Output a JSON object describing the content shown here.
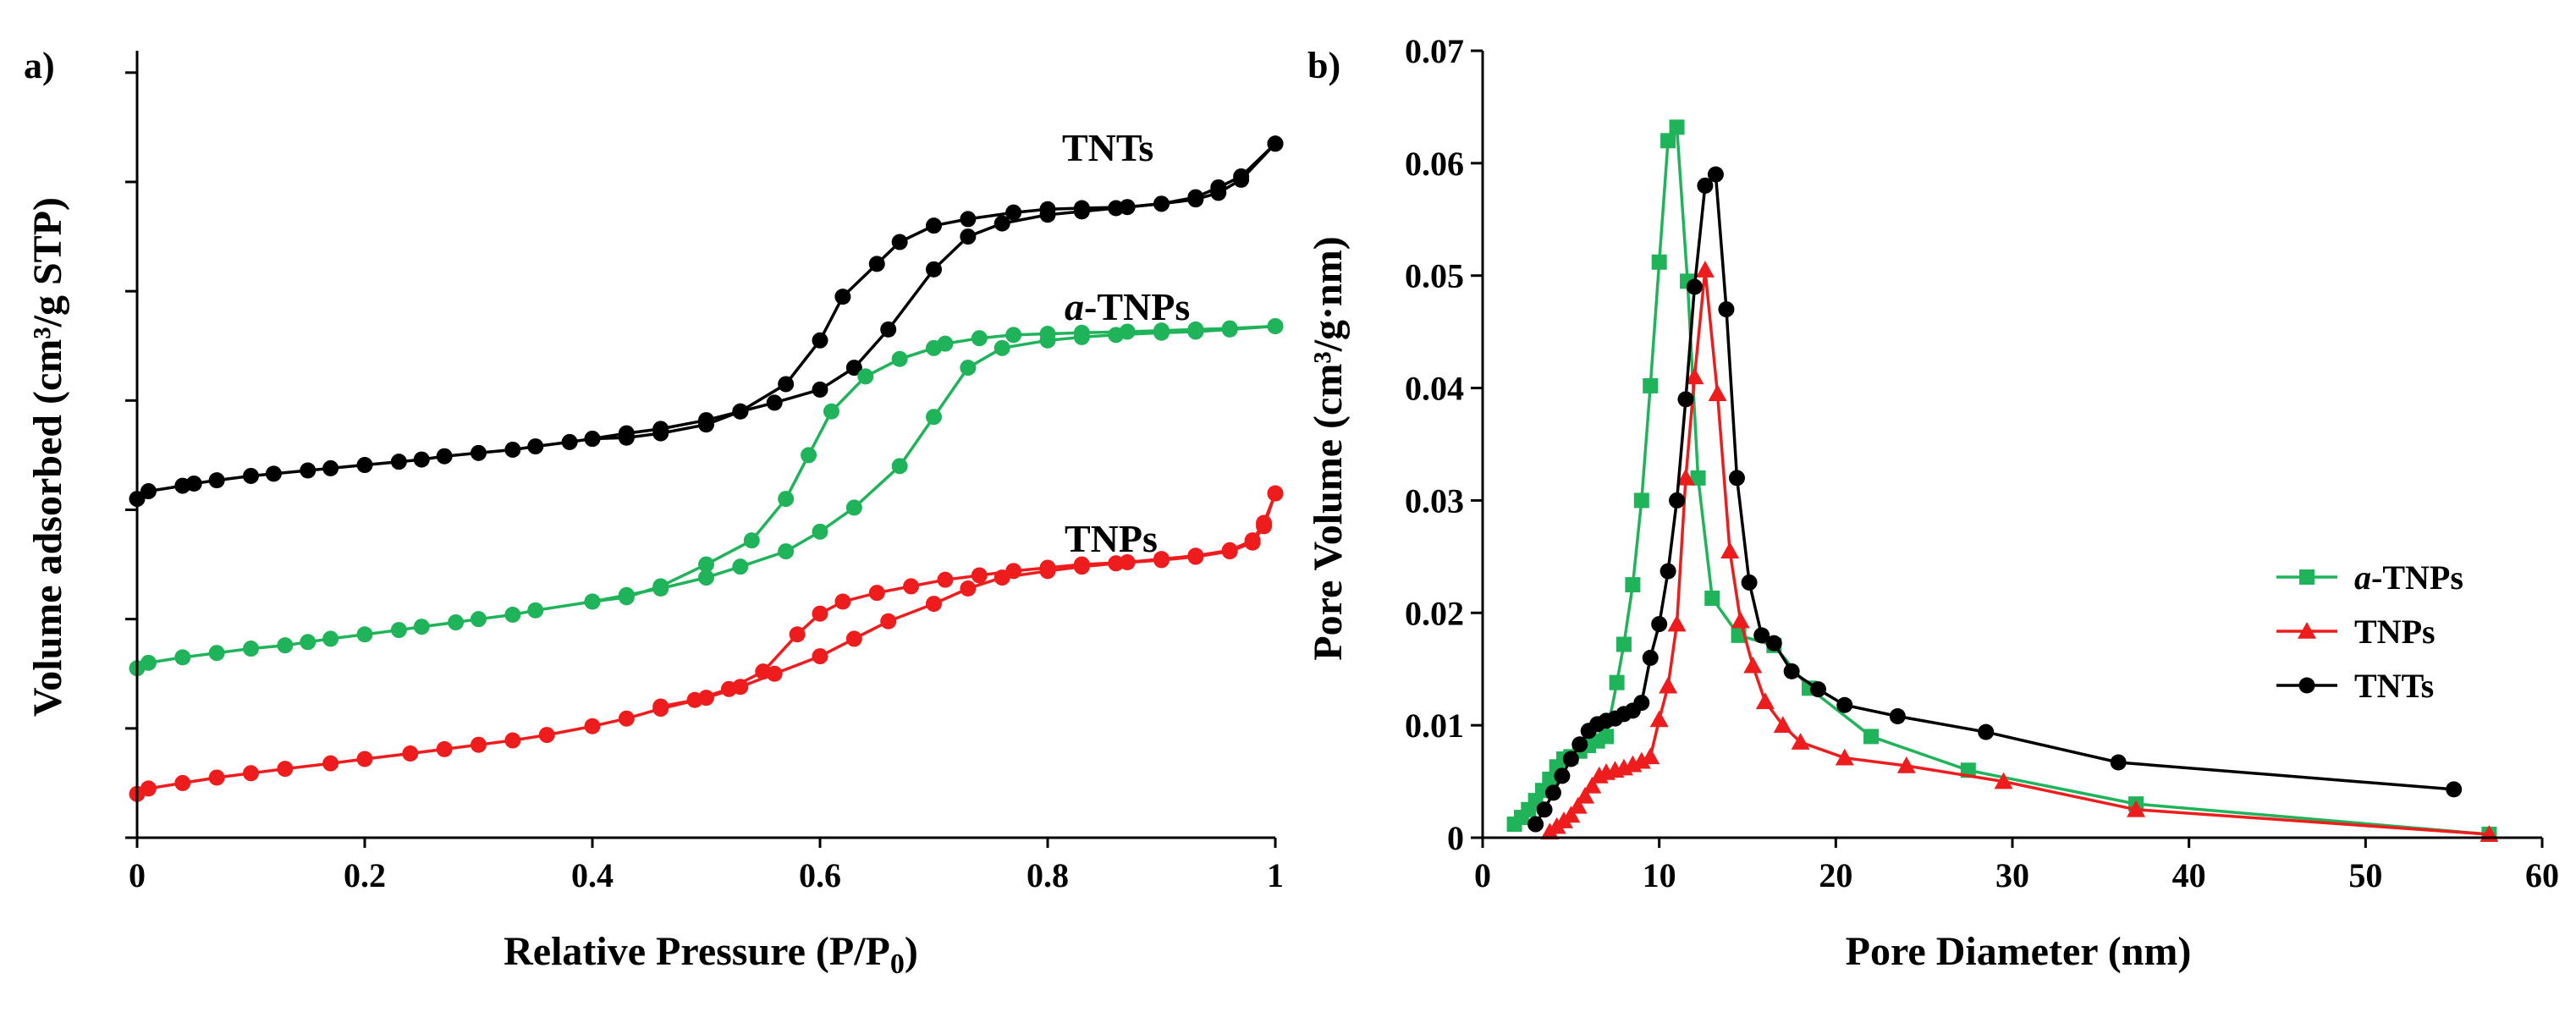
{
  "colors": {
    "tnts": "#000000",
    "atnps": "#1fb35a",
    "tnps": "#ee1c1c"
  },
  "chart_data": [
    {
      "type": "line",
      "panel_label": "a)",
      "xlabel": "Relative Pressure (P/P",
      "xlabel_sub": "0",
      "xlabel_end": ")",
      "ylabel": "Volume adsorbed (cm³/g STP)",
      "xlim": [
        0,
        1
      ],
      "ylim": [
        0,
        7.2
      ],
      "xticks": [
        0,
        0.2,
        0.4,
        0.6,
        0.8,
        1
      ],
      "xtick_labels": [
        "0",
        "0.2",
        "0.4",
        "0.6",
        "0.8",
        "1"
      ],
      "yticks": [
        0,
        1,
        2,
        3,
        4,
        5,
        6,
        7
      ],
      "ytick_labels_shown": false,
      "annotations": [
        "TNTs",
        "a-TNPs",
        "TNPs"
      ],
      "series": [
        {
          "name": "TNTs",
          "color_key": "tnts",
          "marker": "circle",
          "adsorption": {
            "x": [
              0.0,
              0.01,
              0.04,
              0.05,
              0.07,
              0.1,
              0.12,
              0.15,
              0.17,
              0.2,
              0.23,
              0.25,
              0.27,
              0.3,
              0.33,
              0.35,
              0.38,
              0.4,
              0.43,
              0.46,
              0.5,
              0.53,
              0.56,
              0.6,
              0.63,
              0.66,
              0.7,
              0.73,
              0.76,
              0.8,
              0.83,
              0.86,
              0.9,
              0.93,
              0.95,
              0.97,
              1.0
            ],
            "y": [
              3.1,
              3.17,
              3.22,
              3.24,
              3.27,
              3.31,
              3.33,
              3.36,
              3.38,
              3.41,
              3.44,
              3.46,
              3.49,
              3.52,
              3.55,
              3.58,
              3.62,
              3.65,
              3.7,
              3.74,
              3.82,
              3.9,
              3.98,
              4.1,
              4.3,
              4.65,
              5.2,
              5.5,
              5.62,
              5.7,
              5.73,
              5.76,
              5.8,
              5.86,
              5.95,
              6.05,
              6.35
            ]
          },
          "desorption": {
            "x": [
              1.0,
              0.97,
              0.95,
              0.93,
              0.9,
              0.87,
              0.83,
              0.8,
              0.77,
              0.73,
              0.7,
              0.67,
              0.65,
              0.62,
              0.6,
              0.57,
              0.53,
              0.5,
              0.46,
              0.43,
              0.4
            ],
            "y": [
              6.35,
              6.02,
              5.9,
              5.84,
              5.8,
              5.77,
              5.76,
              5.75,
              5.72,
              5.66,
              5.6,
              5.45,
              5.25,
              4.95,
              4.55,
              4.15,
              3.9,
              3.78,
              3.7,
              3.66,
              3.65
            ]
          }
        },
        {
          "name": "a-TNPs",
          "color_key": "atnps",
          "marker": "circle",
          "adsorption": {
            "x": [
              0.0,
              0.01,
              0.04,
              0.07,
              0.1,
              0.13,
              0.15,
              0.17,
              0.2,
              0.23,
              0.25,
              0.28,
              0.3,
              0.33,
              0.35,
              0.4,
              0.43,
              0.46,
              0.5,
              0.53,
              0.57,
              0.6,
              0.63,
              0.67,
              0.7,
              0.73,
              0.76,
              0.8,
              0.83,
              0.86,
              0.9,
              0.93,
              0.96,
              1.0
            ],
            "y": [
              1.55,
              1.6,
              1.65,
              1.69,
              1.73,
              1.76,
              1.79,
              1.82,
              1.86,
              1.9,
              1.93,
              1.97,
              2.0,
              2.04,
              2.08,
              2.16,
              2.22,
              2.28,
              2.38,
              2.48,
              2.62,
              2.8,
              3.02,
              3.4,
              3.85,
              4.3,
              4.48,
              4.55,
              4.58,
              4.6,
              4.62,
              4.63,
              4.65,
              4.68
            ]
          },
          "desorption": {
            "x": [
              1.0,
              0.96,
              0.93,
              0.9,
              0.87,
              0.83,
              0.8,
              0.77,
              0.74,
              0.71,
              0.7,
              0.67,
              0.64,
              0.61,
              0.59,
              0.57,
              0.54,
              0.5,
              0.46,
              0.43,
              0.4
            ],
            "y": [
              4.68,
              4.66,
              4.65,
              4.64,
              4.63,
              4.62,
              4.61,
              4.6,
              4.57,
              4.52,
              4.48,
              4.38,
              4.22,
              3.9,
              3.5,
              3.1,
              2.72,
              2.5,
              2.3,
              2.2,
              2.16
            ]
          }
        },
        {
          "name": "TNPs",
          "color_key": "tnps",
          "marker": "circle",
          "adsorption": {
            "x": [
              0.0,
              0.01,
              0.04,
              0.07,
              0.1,
              0.13,
              0.17,
              0.2,
              0.24,
              0.27,
              0.3,
              0.33,
              0.36,
              0.4,
              0.43,
              0.46,
              0.5,
              0.53,
              0.56,
              0.6,
              0.63,
              0.66,
              0.7,
              0.73,
              0.76,
              0.8,
              0.83,
              0.86,
              0.9,
              0.93,
              0.96,
              0.98,
              0.99,
              1.0
            ],
            "y": [
              0.4,
              0.45,
              0.5,
              0.55,
              0.59,
              0.63,
              0.68,
              0.72,
              0.77,
              0.81,
              0.85,
              0.89,
              0.94,
              1.02,
              1.09,
              1.18,
              1.28,
              1.38,
              1.5,
              1.66,
              1.82,
              1.98,
              2.14,
              2.28,
              2.38,
              2.44,
              2.48,
              2.51,
              2.54,
              2.57,
              2.62,
              2.7,
              2.85,
              3.15
            ]
          },
          "desorption": {
            "x": [
              1.0,
              0.99,
              0.98,
              0.96,
              0.93,
              0.9,
              0.87,
              0.83,
              0.8,
              0.77,
              0.74,
              0.71,
              0.68,
              0.65,
              0.62,
              0.6,
              0.58,
              0.55,
              0.52,
              0.49,
              0.46
            ],
            "y": [
              3.15,
              2.88,
              2.72,
              2.63,
              2.58,
              2.55,
              2.52,
              2.5,
              2.47,
              2.44,
              2.4,
              2.36,
              2.3,
              2.24,
              2.16,
              2.05,
              1.86,
              1.52,
              1.36,
              1.26,
              1.2
            ]
          }
        }
      ]
    },
    {
      "type": "line",
      "panel_label": "b)",
      "xlabel": "Pore Diameter (nm)",
      "ylabel": "Pore Volume (cm³/g·nm)",
      "xlim": [
        0,
        60
      ],
      "ylim": [
        0,
        0.07
      ],
      "xticks": [
        0,
        10,
        20,
        30,
        40,
        50,
        60
      ],
      "xtick_labels": [
        "0",
        "10",
        "20",
        "30",
        "40",
        "50",
        "60"
      ],
      "yticks": [
        0,
        0.01,
        0.02,
        0.03,
        0.04,
        0.05,
        0.06,
        0.07
      ],
      "ytick_labels": [
        "0",
        "0.01",
        "0.02",
        "0.03",
        "0.04",
        "0.05",
        "0.06",
        "0.07"
      ],
      "legend": {
        "position": "center-right",
        "entries": [
          "a-TNPs",
          "TNPs",
          "TNTs"
        ]
      },
      "series": [
        {
          "name": "a-TNPs",
          "legend_label": "a-TNPs",
          "color_key": "atnps",
          "marker": "square",
          "x": [
            1.8,
            2.2,
            2.6,
            3.0,
            3.4,
            3.8,
            4.2,
            4.6,
            5.0,
            5.5,
            6.0,
            6.5,
            7.0,
            7.6,
            8.0,
            8.5,
            9.0,
            9.5,
            10.0,
            10.5,
            11.0,
            11.6,
            12.2,
            13.0,
            14.5,
            16.5,
            18.5,
            22.0,
            27.5,
            37.0,
            57.0
          ],
          "y": [
            0.0012,
            0.0018,
            0.0025,
            0.0033,
            0.0042,
            0.0052,
            0.0063,
            0.007,
            0.0072,
            0.0077,
            0.0082,
            0.0086,
            0.009,
            0.0138,
            0.0172,
            0.0225,
            0.03,
            0.0402,
            0.0512,
            0.062,
            0.0632,
            0.0495,
            0.032,
            0.0213,
            0.018,
            0.0171,
            0.0133,
            0.009,
            0.006,
            0.003,
            0.0003
          ]
        },
        {
          "name": "TNPs",
          "legend_label": "TNPs",
          "color_key": "tnps",
          "marker": "triangle",
          "x": [
            3.8,
            4.2,
            4.6,
            5.0,
            5.4,
            5.8,
            6.2,
            6.6,
            7.0,
            7.5,
            8.0,
            8.5,
            9.0,
            9.5,
            10.0,
            10.5,
            11.0,
            11.5,
            12.0,
            12.6,
            13.3,
            14.0,
            14.6,
            15.3,
            16.0,
            17.0,
            18.0,
            20.5,
            24.0,
            29.5,
            37.0,
            57.0
          ],
          "y": [
            0.0005,
            0.001,
            0.0015,
            0.002,
            0.0028,
            0.0037,
            0.0046,
            0.0055,
            0.0058,
            0.006,
            0.0062,
            0.0065,
            0.0068,
            0.0072,
            0.0105,
            0.0135,
            0.019,
            0.032,
            0.041,
            0.0505,
            0.0395,
            0.0255,
            0.0193,
            0.0153,
            0.0121,
            0.01,
            0.0085,
            0.0071,
            0.0064,
            0.005,
            0.0025,
            0.0003
          ]
        },
        {
          "name": "TNTs",
          "legend_label": "TNTs",
          "color_key": "tnts",
          "marker": "circle",
          "x": [
            3.0,
            3.5,
            4.0,
            4.5,
            5.0,
            5.5,
            6.0,
            6.5,
            7.0,
            7.5,
            8.0,
            8.5,
            9.0,
            9.5,
            10.0,
            10.5,
            11.0,
            11.5,
            12.0,
            12.6,
            13.2,
            13.8,
            14.4,
            15.1,
            15.8,
            16.5,
            17.5,
            19.0,
            20.5,
            23.5,
            28.5,
            36.0,
            55.0
          ],
          "y": [
            0.0012,
            0.0025,
            0.004,
            0.0055,
            0.007,
            0.0083,
            0.0095,
            0.0101,
            0.0104,
            0.0106,
            0.011,
            0.0113,
            0.012,
            0.016,
            0.019,
            0.0237,
            0.03,
            0.039,
            0.049,
            0.058,
            0.059,
            0.047,
            0.032,
            0.0227,
            0.018,
            0.0173,
            0.0148,
            0.0132,
            0.0118,
            0.0108,
            0.0094,
            0.0067,
            0.0043
          ]
        }
      ]
    }
  ]
}
